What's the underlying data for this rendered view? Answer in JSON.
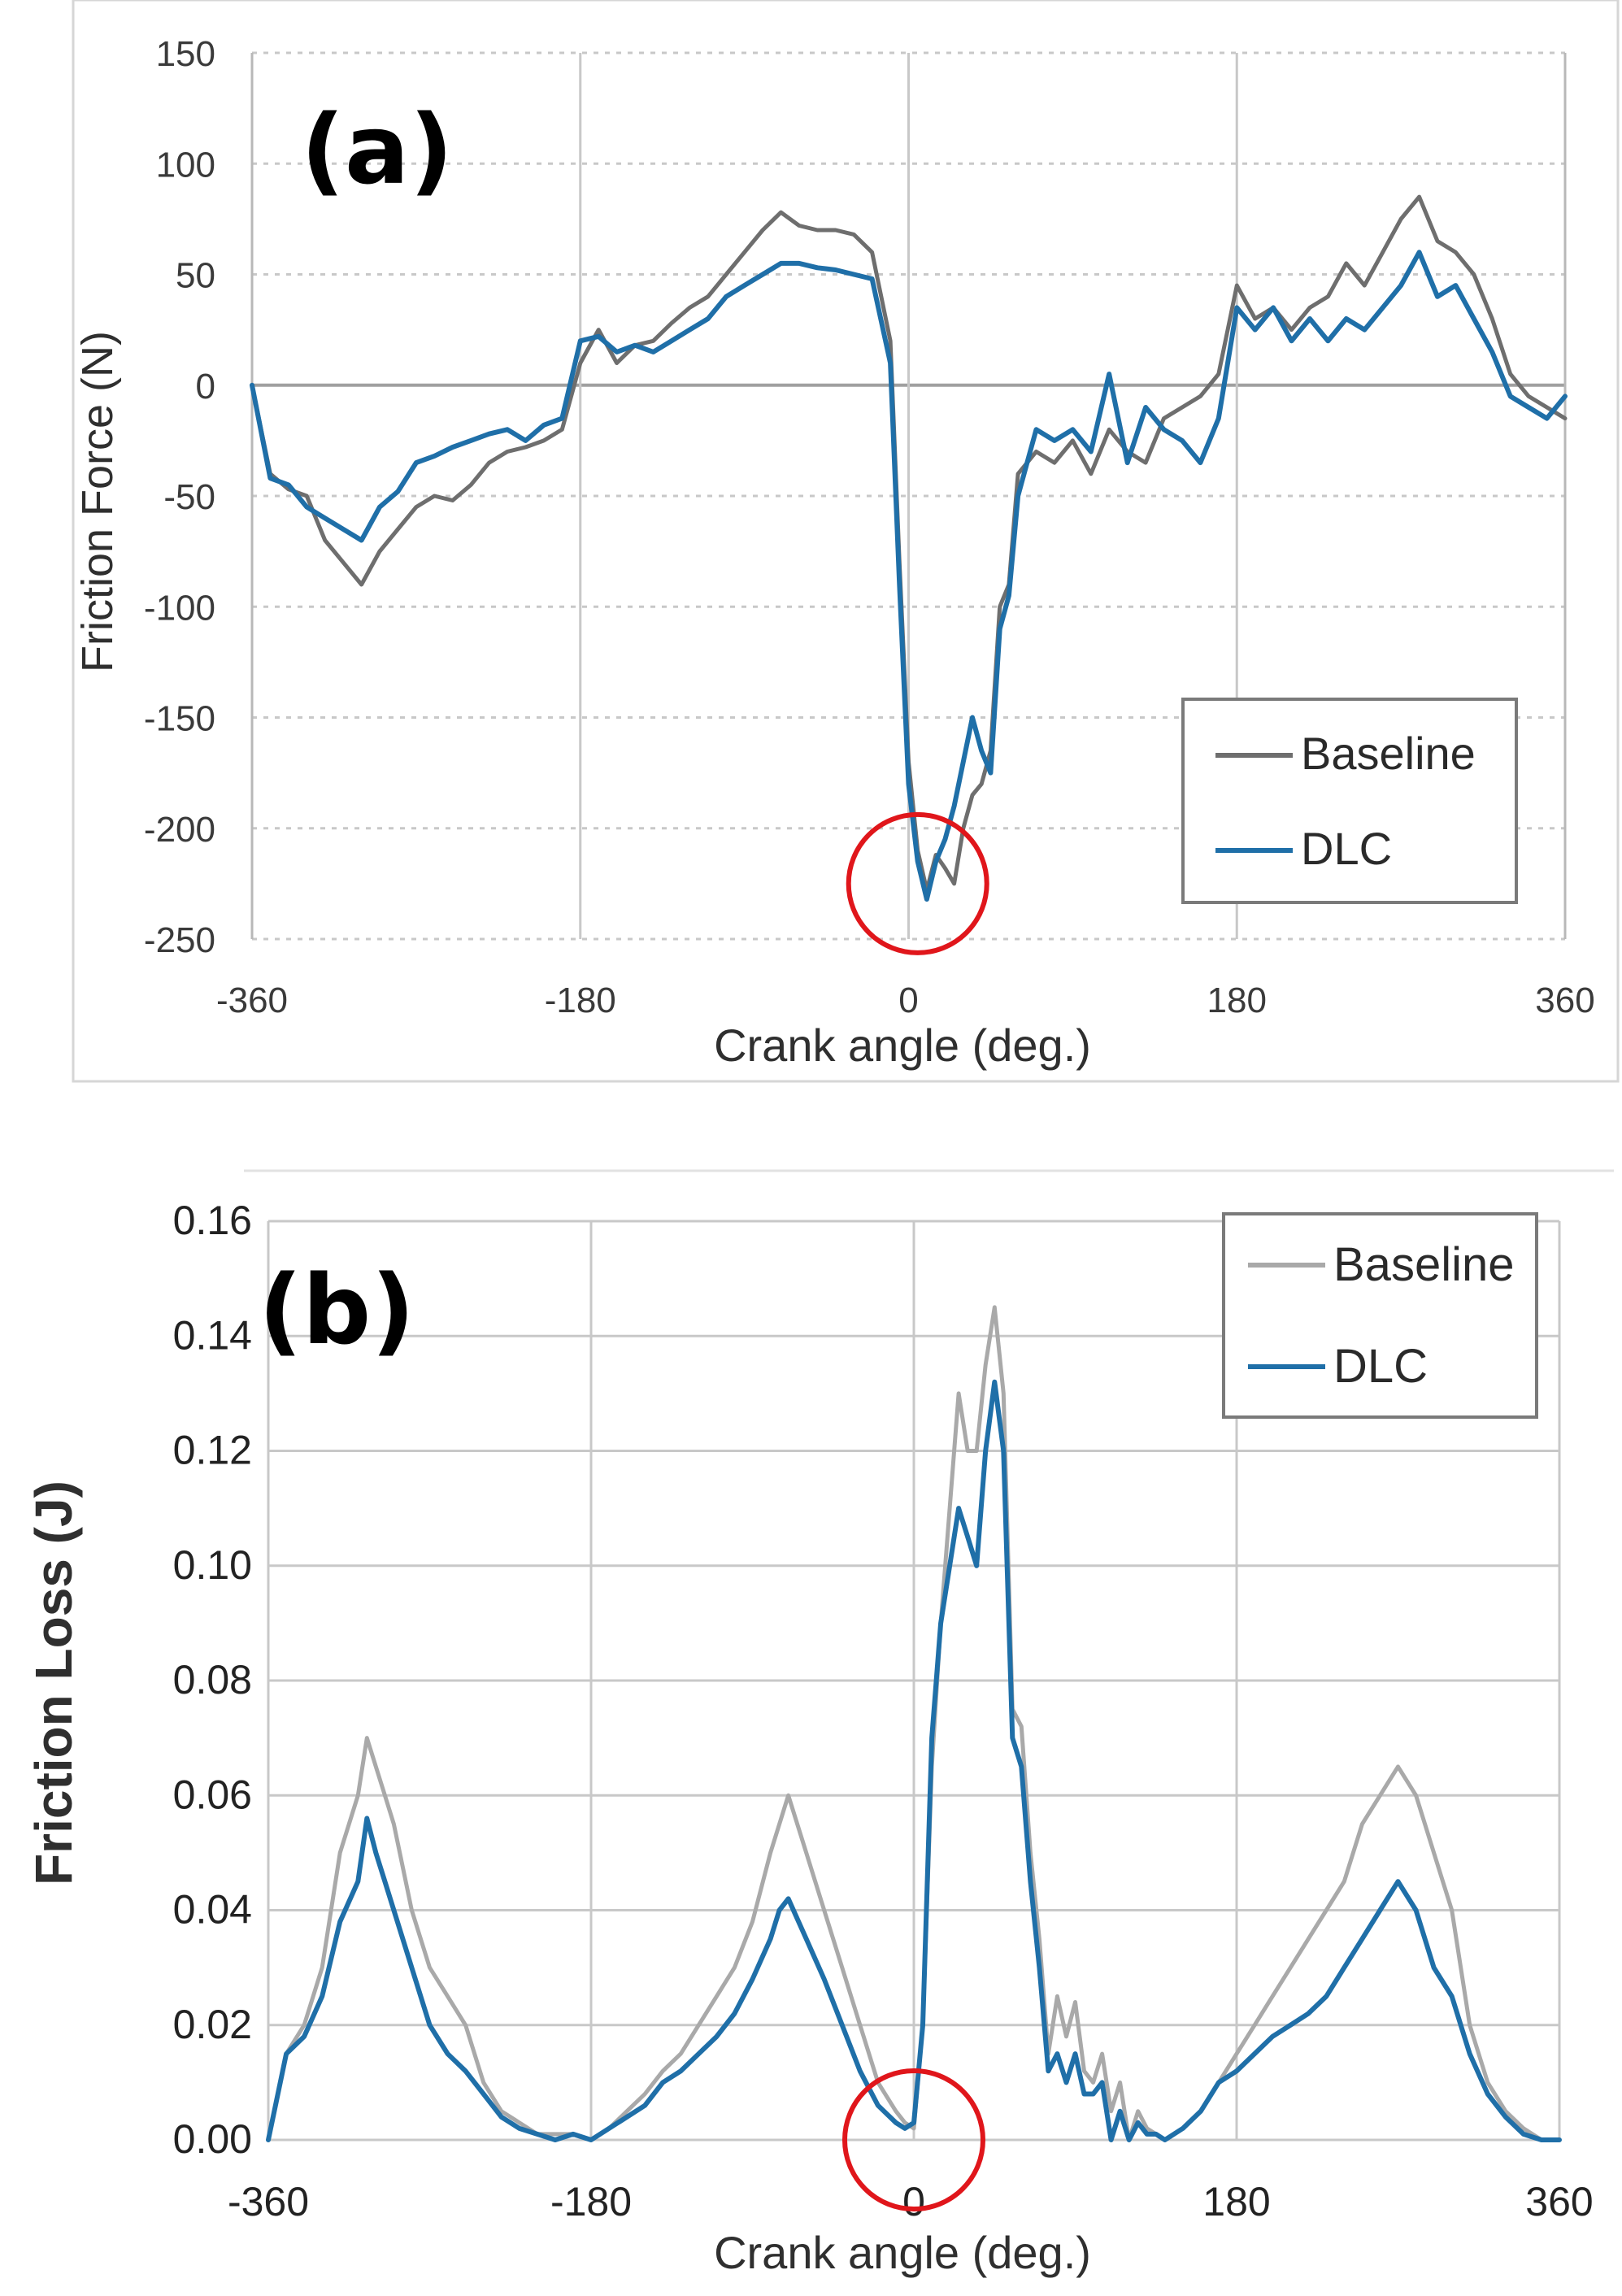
{
  "colors": {
    "baseline_a": "#6e6e6e",
    "baseline_b": "#a9a9a9",
    "dlc": "#1f6fa8",
    "grid": "#c8c8c8",
    "highlight": "#e0161b"
  },
  "chart_data": [
    {
      "type": "line",
      "panel_label": "(a)",
      "xlabel": "Crank angle (deg.)",
      "ylabel": "Friction Force (N)",
      "xlim": [
        -360,
        360
      ],
      "ylim": [
        -250,
        150
      ],
      "x_ticks": [
        -360,
        -180,
        0,
        180,
        360
      ],
      "x_tick_labels": [
        "-360",
        "-180",
        "0",
        "180",
        "360"
      ],
      "y_ticks": [
        150,
        100,
        50,
        0,
        -50,
        -100,
        -150,
        -200,
        -250
      ],
      "y_tick_labels": [
        "150",
        "100",
        "50",
        "0",
        "-50",
        "-100",
        "-150",
        "-200",
        "-250"
      ],
      "grid": true,
      "legend": "bottom-right",
      "highlight": {
        "shape": "circle",
        "x": 5,
        "y": -225
      },
      "series": [
        {
          "name": "Baseline",
          "x": [
            -360,
            -350,
            -340,
            -330,
            -320,
            -310,
            -300,
            -290,
            -280,
            -270,
            -260,
            -250,
            -240,
            -230,
            -220,
            -210,
            -200,
            -190,
            -180,
            -170,
            -160,
            -150,
            -140,
            -130,
            -120,
            -110,
            -100,
            -90,
            -80,
            -70,
            -60,
            -50,
            -40,
            -30,
            -20,
            -10,
            -5,
            0,
            5,
            10,
            15,
            20,
            25,
            30,
            35,
            40,
            45,
            50,
            55,
            60,
            70,
            80,
            90,
            100,
            110,
            120,
            130,
            140,
            150,
            160,
            170,
            180,
            190,
            200,
            210,
            220,
            230,
            240,
            250,
            260,
            270,
            280,
            290,
            300,
            310,
            320,
            330,
            340,
            350,
            360
          ],
          "values": [
            0,
            -40,
            -47,
            -50,
            -70,
            -80,
            -90,
            -75,
            -65,
            -55,
            -50,
            -52,
            -45,
            -35,
            -30,
            -28,
            -25,
            -20,
            10,
            25,
            10,
            18,
            20,
            28,
            35,
            40,
            50,
            60,
            70,
            78,
            72,
            70,
            70,
            68,
            60,
            20,
            -80,
            -170,
            -210,
            -228,
            -212,
            -218,
            -225,
            -200,
            -185,
            -180,
            -165,
            -100,
            -90,
            -40,
            -30,
            -35,
            -25,
            -40,
            -20,
            -30,
            -35,
            -15,
            -10,
            -5,
            5,
            45,
            30,
            35,
            25,
            35,
            40,
            55,
            45,
            60,
            75,
            85,
            65,
            60,
            50,
            30,
            5,
            -5,
            -10,
            -15
          ],
          "comment_x_note": ""
        },
        {
          "name": "DLC",
          "x": [
            -360,
            -350,
            -340,
            -330,
            -320,
            -310,
            -300,
            -290,
            -280,
            -270,
            -260,
            -250,
            -240,
            -230,
            -220,
            -210,
            -200,
            -190,
            -180,
            -170,
            -160,
            -150,
            -140,
            -130,
            -120,
            -110,
            -100,
            -90,
            -80,
            -70,
            -60,
            -50,
            -40,
            -30,
            -20,
            -10,
            -5,
            0,
            5,
            10,
            15,
            20,
            25,
            30,
            35,
            40,
            45,
            50,
            55,
            60,
            70,
            80,
            90,
            100,
            110,
            120,
            130,
            140,
            150,
            160,
            170,
            180,
            190,
            200,
            210,
            220,
            230,
            240,
            250,
            260,
            270,
            280,
            290,
            300,
            310,
            320,
            330,
            340,
            350,
            360
          ],
          "values": [
            0,
            -42,
            -45,
            -55,
            -60,
            -65,
            -70,
            -55,
            -48,
            -35,
            -32,
            -28,
            -25,
            -22,
            -20,
            -25,
            -18,
            -15,
            20,
            22,
            15,
            18,
            15,
            20,
            25,
            30,
            40,
            45,
            50,
            55,
            55,
            53,
            52,
            50,
            48,
            10,
            -90,
            -180,
            -215,
            -232,
            -215,
            -205,
            -190,
            -170,
            -150,
            -165,
            -175,
            -110,
            -95,
            -50,
            -20,
            -25,
            -20,
            -30,
            5,
            -35,
            -10,
            -20,
            -25,
            -35,
            -15,
            35,
            25,
            35,
            20,
            30,
            20,
            30,
            25,
            35,
            45,
            60,
            40,
            45,
            30,
            15,
            -5,
            -10,
            -15,
            -5
          ],
          "comment_x_note": ""
        }
      ]
    },
    {
      "type": "line",
      "panel_label": "(b)",
      "xlabel": "Crank angle (deg.)",
      "ylabel": "Friction Loss (J)",
      "xlim": [
        -360,
        360
      ],
      "ylim": [
        0,
        0.16
      ],
      "x_ticks": [
        -360,
        -180,
        0,
        180,
        360
      ],
      "x_tick_labels": [
        "-360",
        "-180",
        "0",
        "180",
        "360"
      ],
      "y_ticks": [
        0.16,
        0.14,
        0.12,
        0.1,
        0.08,
        0.06,
        0.04,
        0.02,
        0.0
      ],
      "y_tick_labels": [
        "0.16",
        "0.14",
        "0.12",
        "0.10",
        "0.08",
        "0.06",
        "0.04",
        "0.02",
        "0.00"
      ],
      "grid": true,
      "legend": "top-right",
      "highlight": {
        "shape": "circle",
        "x": 0,
        "y": 0
      },
      "series": [
        {
          "name": "Baseline",
          "x": [
            -360,
            -350,
            -340,
            -330,
            -320,
            -310,
            -305,
            -300,
            -295,
            -290,
            -280,
            -270,
            -260,
            -250,
            -240,
            -230,
            -220,
            -210,
            -200,
            -190,
            -180,
            -170,
            -160,
            -150,
            -140,
            -130,
            -120,
            -110,
            -100,
            -90,
            -80,
            -75,
            -70,
            -60,
            -50,
            -40,
            -30,
            -20,
            -10,
            -5,
            0,
            5,
            10,
            15,
            20,
            25,
            30,
            35,
            40,
            45,
            50,
            55,
            60,
            65,
            70,
            75,
            80,
            85,
            90,
            95,
            100,
            105,
            110,
            115,
            120,
            125,
            130,
            135,
            140,
            150,
            160,
            170,
            180,
            190,
            200,
            210,
            220,
            230,
            240,
            250,
            260,
            270,
            280,
            290,
            300,
            305,
            310,
            320,
            330,
            340,
            350,
            360
          ],
          "values": [
            0,
            0.015,
            0.02,
            0.03,
            0.05,
            0.06,
            0.07,
            0.065,
            0.06,
            0.055,
            0.04,
            0.03,
            0.025,
            0.02,
            0.01,
            0.005,
            0.003,
            0.001,
            0.001,
            0.001,
            0.0,
            0.002,
            0.005,
            0.008,
            0.012,
            0.015,
            0.02,
            0.025,
            0.03,
            0.038,
            0.05,
            0.055,
            0.06,
            0.05,
            0.04,
            0.03,
            0.02,
            0.01,
            0.005,
            0.003,
            0.002,
            0.02,
            0.065,
            0.09,
            0.11,
            0.13,
            0.12,
            0.12,
            0.135,
            0.145,
            0.13,
            0.075,
            0.072,
            0.05,
            0.035,
            0.015,
            0.025,
            0.018,
            0.024,
            0.012,
            0.01,
            0.015,
            0.005,
            0.01,
            0.0,
            0.005,
            0.002,
            0.001,
            0.0,
            0.002,
            0.005,
            0.01,
            0.015,
            0.02,
            0.025,
            0.03,
            0.035,
            0.04,
            0.045,
            0.055,
            0.06,
            0.065,
            0.06,
            0.05,
            0.04,
            0.03,
            0.02,
            0.01,
            0.005,
            0.002,
            0.0,
            0.0
          ],
          "comment_x_note": ""
        },
        {
          "name": "DLC",
          "x": [
            -360,
            -350,
            -340,
            -330,
            -320,
            -310,
            -305,
            -300,
            -295,
            -290,
            -280,
            -270,
            -260,
            -250,
            -240,
            -230,
            -220,
            -210,
            -200,
            -190,
            -180,
            -170,
            -160,
            -150,
            -140,
            -130,
            -120,
            -110,
            -100,
            -90,
            -80,
            -75,
            -70,
            -60,
            -50,
            -40,
            -30,
            -20,
            -10,
            -5,
            0,
            5,
            10,
            15,
            20,
            25,
            30,
            35,
            40,
            45,
            50,
            55,
            60,
            65,
            70,
            75,
            80,
            85,
            90,
            95,
            100,
            105,
            110,
            115,
            120,
            125,
            130,
            135,
            140,
            150,
            160,
            170,
            180,
            190,
            200,
            210,
            220,
            230,
            240,
            250,
            260,
            270,
            280,
            290,
            300,
            305,
            310,
            320,
            330,
            340,
            350,
            360
          ],
          "values": [
            0,
            0.015,
            0.018,
            0.025,
            0.038,
            0.045,
            0.056,
            0.05,
            0.045,
            0.04,
            0.03,
            0.02,
            0.015,
            0.012,
            0.008,
            0.004,
            0.002,
            0.001,
            0.0,
            0.001,
            0.0,
            0.002,
            0.004,
            0.006,
            0.01,
            0.012,
            0.015,
            0.018,
            0.022,
            0.028,
            0.035,
            0.04,
            0.042,
            0.035,
            0.028,
            0.02,
            0.012,
            0.006,
            0.003,
            0.002,
            0.003,
            0.02,
            0.07,
            0.09,
            0.1,
            0.11,
            0.105,
            0.1,
            0.12,
            0.132,
            0.12,
            0.07,
            0.065,
            0.045,
            0.03,
            0.012,
            0.015,
            0.01,
            0.015,
            0.008,
            0.008,
            0.01,
            0.0,
            0.005,
            0.0,
            0.003,
            0.001,
            0.001,
            0.0,
            0.002,
            0.005,
            0.01,
            0.012,
            0.015,
            0.018,
            0.02,
            0.022,
            0.025,
            0.03,
            0.035,
            0.04,
            0.045,
            0.04,
            0.03,
            0.025,
            0.02,
            0.015,
            0.008,
            0.004,
            0.001,
            0.0,
            0.0
          ],
          "comment_x_note": ""
        }
      ]
    }
  ]
}
